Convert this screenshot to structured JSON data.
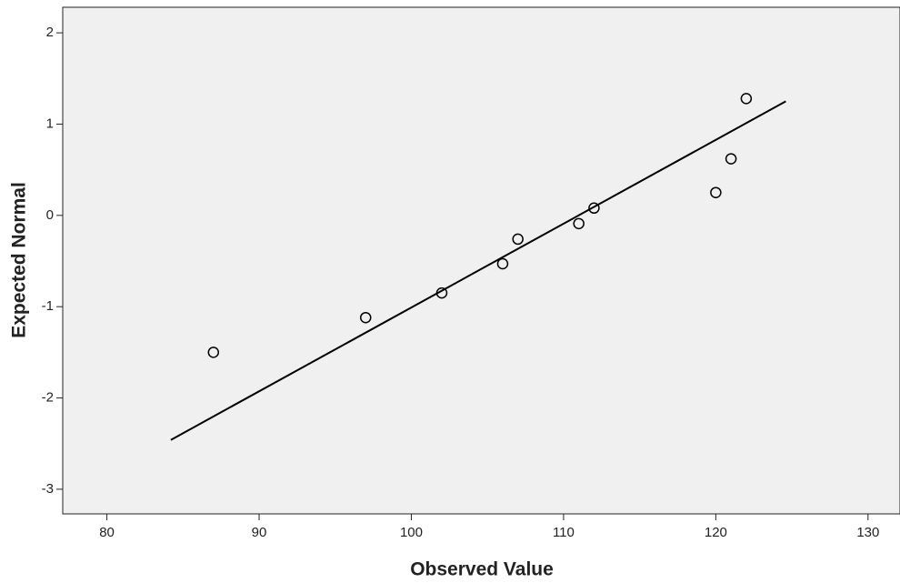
{
  "chart_data": {
    "type": "scatter",
    "x_label": "Observed Value",
    "y_label": "Expected Normal",
    "x": [
      87,
      97,
      102,
      106,
      107,
      111,
      112,
      120,
      121,
      122
    ],
    "values": [
      -1.5,
      -1.12,
      -0.85,
      -0.53,
      -0.26,
      -0.09,
      0.08,
      0.25,
      0.62,
      1.28
    ],
    "color": "#000000",
    "reference_line": {
      "x": [
        84.2,
        124.6
      ],
      "y": [
        -2.46,
        1.25
      ],
      "color": "#000000"
    },
    "xlim": [
      77.1,
      132.1
    ],
    "xticks": [
      80,
      90,
      100,
      110,
      120,
      130
    ],
    "ylim": [
      -3.27,
      2.28
    ],
    "yticks": [
      -3,
      -2,
      -1,
      0,
      1,
      2
    ],
    "plot_background": "#f0f0f0",
    "grid": false
  }
}
